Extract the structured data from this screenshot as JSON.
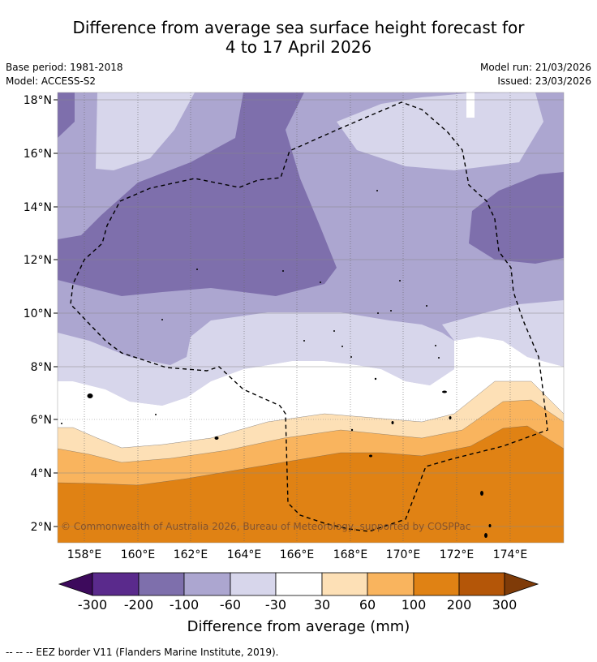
{
  "title": {
    "line1": "Difference from average sea surface height forecast for",
    "line2": "4 to 17 April 2026"
  },
  "meta": {
    "base_period": "Base period: 1981-2018",
    "model": "Model: ACCESS-S2",
    "model_run": "Model run: 21/03/2026",
    "issued": "Issued: 23/03/2026"
  },
  "map": {
    "lat_labels": [
      "18°N",
      "16°N",
      "14°N",
      "12°N",
      "10°N",
      "8°N",
      "6°N",
      "4°N",
      "2°N"
    ],
    "lon_labels": [
      "158°E",
      "160°E",
      "162°E",
      "164°E",
      "166°E",
      "168°E",
      "170°E",
      "172°E",
      "174°E"
    ],
    "copyright": "© Commonwealth of Australia 2026, Bureau of Meteorology, supported by COSPPac"
  },
  "colorbar": {
    "tick_labels": [
      "-300",
      "-200",
      "-100",
      "-60",
      "-30",
      "30",
      "60",
      "100",
      "200",
      "300"
    ],
    "colors": [
      "#3d0a5c",
      "#5a2a8c",
      "#7e6fac",
      "#aca6d0",
      "#d7d6eb",
      "#ffffff",
      "#fde0b6",
      "#f9b45e",
      "#e08214",
      "#b45608",
      "#7f3b08"
    ],
    "title": "Difference from average (mm)"
  },
  "footnote": "--  --  -- EEZ border V11 (Flanders Marine Institute, 2019)."
}
